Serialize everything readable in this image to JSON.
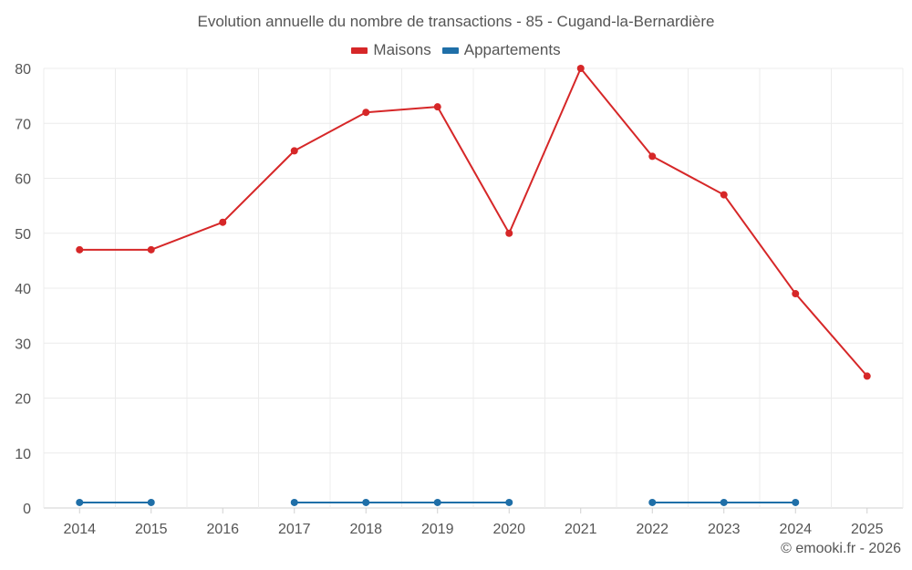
{
  "chart_data": {
    "type": "line",
    "title": "Evolution annuelle du nombre de transactions - 85 - Cugand-la-Bernardière",
    "categories": [
      "2014",
      "2015",
      "2016",
      "2017",
      "2018",
      "2019",
      "2020",
      "2021",
      "2022",
      "2023",
      "2024",
      "2025"
    ],
    "series": [
      {
        "name": "Maisons",
        "color": "#d62728",
        "values": [
          47,
          47,
          52,
          65,
          72,
          73,
          50,
          80,
          64,
          57,
          39,
          24
        ]
      },
      {
        "name": "Appartements",
        "color": "#1f6fa8",
        "values": [
          1,
          1,
          null,
          1,
          1,
          1,
          1,
          null,
          1,
          1,
          1,
          null
        ]
      }
    ],
    "ylim": [
      0,
      80
    ],
    "yticks": [
      0,
      10,
      20,
      30,
      40,
      50,
      60,
      70,
      80
    ],
    "xlabel": "",
    "ylabel": "",
    "grid": true,
    "legend": "top-center"
  },
  "credit": "© emooki.fr - 2026"
}
